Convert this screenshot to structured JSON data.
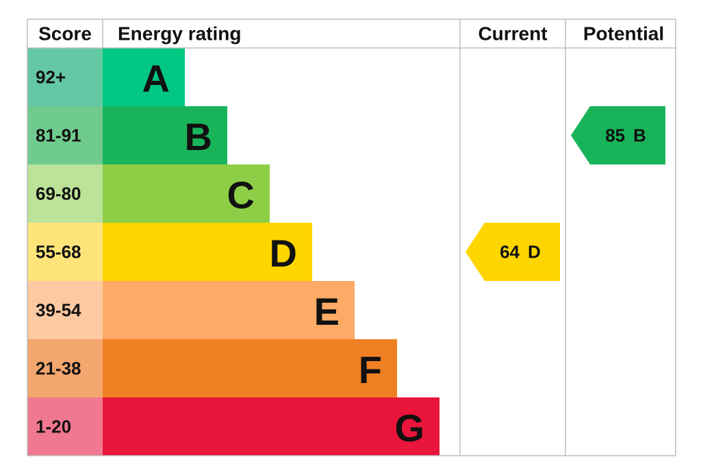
{
  "header": {
    "score": "Score",
    "rating": "Energy rating",
    "current": "Current",
    "potential": "Potential"
  },
  "bands": [
    {
      "score": "92+",
      "letter": "A",
      "color": "#00c781",
      "score_color": "#63c8a3"
    },
    {
      "score": "81-91",
      "letter": "B",
      "color": "#19b459",
      "score_color": "#6fcb8e"
    },
    {
      "score": "69-80",
      "letter": "C",
      "color": "#8dce46",
      "score_color": "#bce397"
    },
    {
      "score": "55-68",
      "letter": "D",
      "color": "#ffd500",
      "score_color": "#ffe47a"
    },
    {
      "score": "39-54",
      "letter": "E",
      "color": "#fcaa65",
      "score_color": "#fdc9a1"
    },
    {
      "score": "21-38",
      "letter": "F",
      "color": "#ef8023",
      "score_color": "#f3a66d"
    },
    {
      "score": "1-20",
      "letter": "G",
      "color": "#e9153b",
      "score_color": "#f07890"
    }
  ],
  "current": {
    "value": 64,
    "letter": "D"
  },
  "potential": {
    "value": 85,
    "letter": "B"
  }
}
